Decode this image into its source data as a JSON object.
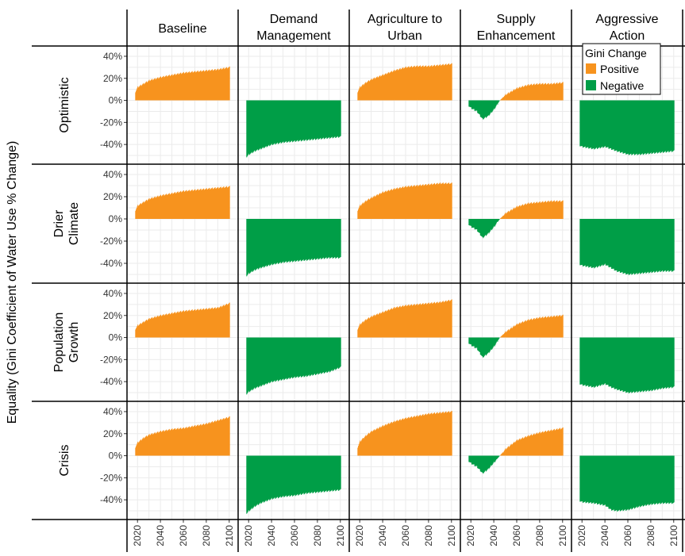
{
  "chart_data": {
    "type": "area",
    "ylabel": "Equality (Gini Coefficient of Water Use % Change)",
    "xlabel": "",
    "x_ticks": [
      "2020",
      "2040",
      "2060",
      "2080",
      "2100"
    ],
    "y_ticks": [
      "40%",
      "20%",
      "0%",
      "-20%",
      "-40%"
    ],
    "xlim": [
      2015,
      2105
    ],
    "ylim": [
      -55,
      45
    ],
    "columns": [
      "Baseline",
      "Demand\nManagement",
      "Agriculture to\nUrban",
      "Supply\nEnhancement",
      "Aggressive\nAction"
    ],
    "rows": [
      "Optimistic",
      "Drier\nClimate",
      "Population\nGrowth",
      "Crisis"
    ],
    "legend": {
      "title": "Gini Change",
      "placement": "top-right",
      "entries": [
        {
          "label": "Positive",
          "color": "#F7931E"
        },
        {
          "label": "Negative",
          "color": "#009E47"
        }
      ]
    },
    "panels": [
      [
        {
          "years": [
            2018,
            2020,
            2025,
            2030,
            2040,
            2050,
            2060,
            2070,
            2080,
            2090,
            2100
          ],
          "values": [
            8,
            12,
            15,
            18,
            21,
            23,
            25,
            26,
            27,
            28,
            30
          ]
        },
        {
          "years": [
            2018,
            2020,
            2025,
            2030,
            2040,
            2050,
            2060,
            2070,
            2080,
            2090,
            2100
          ],
          "values": [
            -51,
            -49,
            -46,
            -44,
            -40,
            -38,
            -37,
            -36,
            -35,
            -34,
            -33
          ]
        },
        {
          "years": [
            2018,
            2020,
            2025,
            2030,
            2040,
            2050,
            2060,
            2070,
            2080,
            2090,
            2100
          ],
          "values": [
            8,
            12,
            16,
            19,
            23,
            27,
            30,
            31,
            31,
            32,
            33
          ]
        },
        {
          "years": [
            2018,
            2020,
            2025,
            2030,
            2035,
            2040,
            2045,
            2050,
            2060,
            2070,
            2080,
            2090,
            2100
          ],
          "values": [
            -5,
            -7,
            -10,
            -17,
            -14,
            -8,
            0,
            5,
            11,
            14,
            15,
            15,
            16
          ]
        },
        {
          "years": [
            2018,
            2020,
            2030,
            2040,
            2045,
            2050,
            2060,
            2070,
            2080,
            2090,
            2100
          ],
          "values": [
            -41,
            -42,
            -44,
            -42,
            -44,
            -46,
            -49,
            -49,
            -48,
            -47,
            -46
          ]
        }
      ],
      [
        {
          "years": [
            2018,
            2020,
            2025,
            2030,
            2040,
            2050,
            2060,
            2070,
            2080,
            2090,
            2100
          ],
          "values": [
            8,
            12,
            15,
            18,
            21,
            23,
            25,
            26,
            27,
            28,
            29
          ]
        },
        {
          "years": [
            2018,
            2020,
            2025,
            2030,
            2040,
            2050,
            2060,
            2070,
            2080,
            2090,
            2100
          ],
          "values": [
            -51,
            -49,
            -46,
            -44,
            -41,
            -39,
            -38,
            -37,
            -36,
            -35,
            -35
          ]
        },
        {
          "years": [
            2018,
            2020,
            2025,
            2030,
            2040,
            2050,
            2060,
            2070,
            2080,
            2090,
            2100
          ],
          "values": [
            8,
            12,
            16,
            19,
            24,
            27,
            29,
            30,
            31,
            32,
            32
          ]
        },
        {
          "years": [
            2018,
            2020,
            2025,
            2030,
            2035,
            2040,
            2045,
            2050,
            2060,
            2070,
            2080,
            2090,
            2100
          ],
          "values": [
            -5,
            -7,
            -10,
            -17,
            -13,
            -7,
            0,
            5,
            11,
            14,
            15,
            16,
            16
          ]
        },
        {
          "years": [
            2018,
            2020,
            2030,
            2040,
            2045,
            2050,
            2060,
            2070,
            2080,
            2090,
            2100
          ],
          "values": [
            -41,
            -42,
            -44,
            -41,
            -44,
            -47,
            -50,
            -49,
            -48,
            -47,
            -47
          ]
        }
      ],
      [
        {
          "years": [
            2018,
            2020,
            2025,
            2030,
            2040,
            2050,
            2060,
            2070,
            2080,
            2090,
            2100
          ],
          "values": [
            8,
            11,
            14,
            17,
            20,
            22,
            24,
            25,
            26,
            27,
            31
          ]
        },
        {
          "years": [
            2018,
            2020,
            2025,
            2030,
            2040,
            2050,
            2060,
            2070,
            2080,
            2090,
            2100
          ],
          "values": [
            -51,
            -49,
            -46,
            -44,
            -40,
            -38,
            -36,
            -35,
            -33,
            -31,
            -27
          ]
        },
        {
          "years": [
            2018,
            2020,
            2025,
            2030,
            2040,
            2050,
            2060,
            2070,
            2080,
            2090,
            2100
          ],
          "values": [
            8,
            12,
            16,
            19,
            23,
            27,
            29,
            30,
            31,
            32,
            34
          ]
        },
        {
          "years": [
            2018,
            2020,
            2025,
            2030,
            2035,
            2040,
            2045,
            2050,
            2060,
            2070,
            2080,
            2090,
            2100
          ],
          "values": [
            -5,
            -7,
            -10,
            -18,
            -14,
            -8,
            0,
            5,
            12,
            16,
            18,
            19,
            20
          ]
        },
        {
          "years": [
            2018,
            2020,
            2030,
            2040,
            2045,
            2050,
            2060,
            2070,
            2080,
            2090,
            2100
          ],
          "values": [
            -42,
            -43,
            -45,
            -42,
            -45,
            -47,
            -50,
            -49,
            -48,
            -46,
            -45
          ]
        }
      ],
      [
        {
          "years": [
            2018,
            2020,
            2025,
            2030,
            2040,
            2050,
            2060,
            2070,
            2080,
            2090,
            2100
          ],
          "values": [
            8,
            12,
            16,
            19,
            22,
            24,
            25,
            27,
            29,
            32,
            35
          ]
        },
        {
          "years": [
            2018,
            2020,
            2025,
            2030,
            2040,
            2050,
            2060,
            2070,
            2080,
            2090,
            2100
          ],
          "values": [
            -52,
            -50,
            -46,
            -43,
            -39,
            -37,
            -36,
            -34,
            -33,
            -32,
            -31
          ]
        },
        {
          "years": [
            2018,
            2020,
            2025,
            2030,
            2040,
            2050,
            2060,
            2070,
            2080,
            2090,
            2100
          ],
          "values": [
            8,
            13,
            18,
            22,
            27,
            31,
            34,
            36,
            38,
            39,
            40
          ]
        },
        {
          "years": [
            2018,
            2020,
            2025,
            2030,
            2035,
            2040,
            2045,
            2050,
            2060,
            2070,
            2080,
            2090,
            2100
          ],
          "values": [
            -5,
            -7,
            -10,
            -16,
            -12,
            -6,
            0,
            6,
            14,
            18,
            21,
            23,
            25
          ]
        },
        {
          "years": [
            2018,
            2020,
            2030,
            2040,
            2045,
            2050,
            2060,
            2070,
            2080,
            2090,
            2100
          ],
          "values": [
            -41,
            -42,
            -43,
            -45,
            -49,
            -50,
            -49,
            -46,
            -44,
            -43,
            -43
          ]
        }
      ]
    ]
  }
}
